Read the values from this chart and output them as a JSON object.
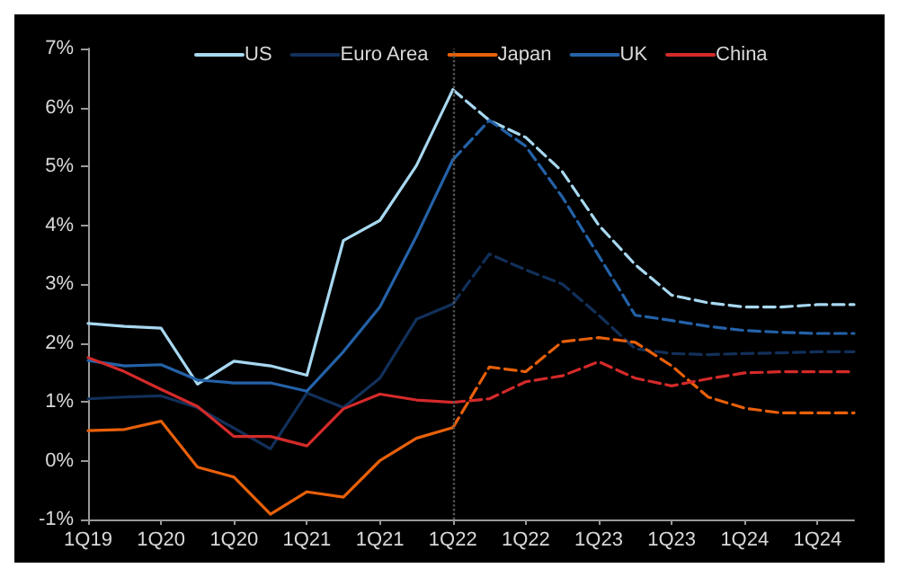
{
  "chart_data": {
    "type": "line",
    "categories": [
      "1Q19",
      null,
      "1Q20",
      null,
      "1Q20",
      null,
      "1Q21",
      null,
      "1Q21",
      null,
      "1Q22",
      null,
      "1Q22",
      null,
      "1Q23",
      null,
      "1Q23",
      null,
      "1Q24",
      null,
      "1Q24",
      null
    ],
    "series": [
      {
        "name": "US",
        "color": "#a8d8f0",
        "line_style": "solid",
        "values": [
          2.33,
          2.28,
          2.25,
          1.3,
          1.69,
          1.61,
          1.45,
          3.74,
          4.08,
          5.01,
          6.3,
          null,
          null,
          null,
          null,
          null,
          null,
          null,
          null,
          null,
          null,
          null
        ]
      },
      {
        "color": "#a8d8f0",
        "line_style": "dashed",
        "values": [
          null,
          null,
          null,
          null,
          null,
          null,
          null,
          null,
          null,
          null,
          6.3,
          5.78,
          5.49,
          4.91,
          4.0,
          3.33,
          2.81,
          2.68,
          2.61,
          2.61,
          2.65,
          2.65
        ]
      },
      {
        "name": "Euro Area",
        "color": "#12305a",
        "line_style": "solid",
        "values": [
          1.05,
          1.08,
          1.1,
          0.9,
          0.55,
          0.2,
          1.15,
          0.9,
          1.4,
          2.4,
          2.66,
          null,
          null,
          null,
          null,
          null,
          null,
          null,
          null,
          null,
          null,
          null
        ]
      },
      {
        "color": "#12305a",
        "line_style": "dashed",
        "values": [
          null,
          null,
          null,
          null,
          null,
          null,
          null,
          null,
          null,
          null,
          2.66,
          3.51,
          3.24,
          3.0,
          2.47,
          1.9,
          1.82,
          1.8,
          1.82,
          1.83,
          1.85,
          1.85
        ]
      },
      {
        "name": "Japan",
        "color": "#e8600a",
        "line_style": "solid",
        "values": [
          0.51,
          0.53,
          0.67,
          -0.11,
          -0.28,
          -0.91,
          -0.53,
          -0.62,
          0.0,
          0.38,
          0.56,
          null,
          null,
          null,
          null,
          null,
          null,
          null,
          null,
          null,
          null,
          null
        ]
      },
      {
        "color": "#e8600a",
        "line_style": "dashed",
        "values": [
          null,
          null,
          null,
          null,
          null,
          null,
          null,
          null,
          null,
          null,
          0.56,
          1.59,
          1.51,
          2.02,
          2.09,
          2.01,
          1.61,
          1.08,
          0.89,
          0.81,
          0.81,
          0.81
        ]
      },
      {
        "name": "UK",
        "color": "#2462a8",
        "line_style": "solid",
        "values": [
          1.7,
          1.61,
          1.63,
          1.37,
          1.32,
          1.32,
          1.18,
          1.85,
          2.61,
          3.81,
          5.11,
          null,
          null,
          null,
          null,
          null,
          null,
          null,
          null,
          null,
          null,
          null
        ]
      },
      {
        "color": "#2462a8",
        "line_style": "dashed",
        "values": [
          null,
          null,
          null,
          null,
          null,
          null,
          null,
          null,
          null,
          null,
          5.11,
          5.78,
          5.34,
          4.48,
          3.48,
          2.47,
          2.38,
          2.28,
          2.21,
          2.18,
          2.16,
          2.16
        ]
      },
      {
        "name": "China",
        "color": "#d42a2a",
        "line_style": "solid",
        "values": [
          1.75,
          1.51,
          1.21,
          0.92,
          0.41,
          0.41,
          0.25,
          0.88,
          1.13,
          1.03,
          0.99,
          null,
          null,
          null,
          null,
          null,
          null,
          null,
          null,
          null,
          null,
          null
        ]
      },
      {
        "color": "#d42a2a",
        "line_style": "dashed",
        "values": [
          null,
          null,
          null,
          null,
          null,
          null,
          null,
          null,
          null,
          null,
          0.99,
          1.05,
          1.34,
          1.44,
          1.68,
          1.4,
          1.27,
          1.39,
          1.49,
          1.51,
          1.51,
          1.51
        ]
      }
    ],
    "ylim": [
      -1,
      7
    ],
    "yticks": [
      {
        "value": -1,
        "label": "-1%"
      },
      {
        "value": 0,
        "label": "0%"
      },
      {
        "value": 1,
        "label": "1%"
      },
      {
        "value": 2,
        "label": "2%"
      },
      {
        "value": 3,
        "label": "3%"
      },
      {
        "value": 4,
        "label": "4%"
      },
      {
        "value": 5,
        "label": "5%"
      },
      {
        "value": 6,
        "label": "6%"
      },
      {
        "value": 7,
        "label": "7%"
      }
    ],
    "ref_lines": [
      {
        "axis": "x",
        "value": "1Q22",
        "color": "#555555",
        "line_style": "dotted"
      }
    ],
    "grid": false,
    "legend": "top",
    "marker": "none"
  }
}
